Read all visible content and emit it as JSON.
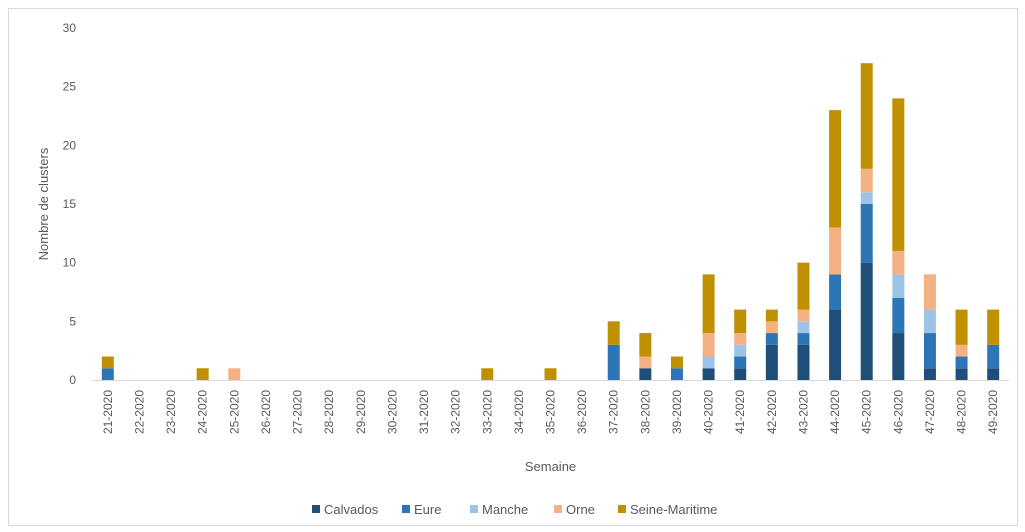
{
  "chart_data": {
    "type": "bar",
    "stacked": true,
    "xlabel": "Semaine",
    "ylabel": "Nombre de clusters",
    "ylim": [
      0,
      30
    ],
    "yticks": [
      0,
      5,
      10,
      15,
      20,
      25,
      30
    ],
    "grid": false,
    "legend": "bottom",
    "categories": [
      "21-2020",
      "22-2020",
      "23-2020",
      "24-2020",
      "25-2020",
      "26-2020",
      "27-2020",
      "28-2020",
      "29-2020",
      "30-2020",
      "31-2020",
      "32-2020",
      "33-2020",
      "34-2020",
      "35-2020",
      "36-2020",
      "37-2020",
      "38-2020",
      "39-2020",
      "40-2020",
      "41-2020",
      "42-2020",
      "43-2020",
      "44-2020",
      "45-2020",
      "46-2020",
      "47-2020",
      "48-2020",
      "49-2020"
    ],
    "series": [
      {
        "name": "Calvados",
        "color": "#1f4e79",
        "values": [
          0,
          0,
          0,
          0,
          0,
          0,
          0,
          0,
          0,
          0,
          0,
          0,
          0,
          0,
          0,
          0,
          0,
          1,
          0,
          1,
          1,
          3,
          3,
          6,
          10,
          4,
          1,
          1,
          1
        ]
      },
      {
        "name": "Eure",
        "color": "#2e75b6",
        "values": [
          1,
          0,
          0,
          0,
          0,
          0,
          0,
          0,
          0,
          0,
          0,
          0,
          0,
          0,
          0,
          0,
          3,
          0,
          1,
          0,
          1,
          1,
          1,
          3,
          5,
          3,
          3,
          1,
          2
        ]
      },
      {
        "name": "Manche",
        "color": "#9dc3e6",
        "values": [
          0,
          0,
          0,
          0,
          0,
          0,
          0,
          0,
          0,
          0,
          0,
          0,
          0,
          0,
          0,
          0,
          0,
          0,
          0,
          1,
          1,
          0,
          1,
          0,
          1,
          2,
          2,
          0,
          0
        ]
      },
      {
        "name": "Orne",
        "color": "#f4b183",
        "values": [
          0,
          0,
          0,
          0,
          1,
          0,
          0,
          0,
          0,
          0,
          0,
          0,
          0,
          0,
          0,
          0,
          0,
          1,
          0,
          2,
          1,
          1,
          1,
          4,
          2,
          2,
          3,
          1,
          0
        ]
      },
      {
        "name": "Seine-Maritime",
        "color": "#bf9000",
        "values": [
          1,
          0,
          0,
          1,
          0,
          0,
          0,
          0,
          0,
          0,
          0,
          0,
          1,
          0,
          1,
          0,
          2,
          2,
          1,
          5,
          2,
          1,
          4,
          10,
          9,
          13,
          0,
          3,
          3
        ]
      }
    ]
  }
}
